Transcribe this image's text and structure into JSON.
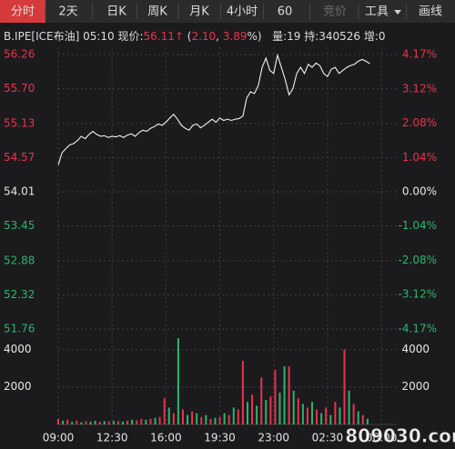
{
  "toolbar": {
    "tabs": [
      "分时",
      "2天",
      "日K",
      "周K",
      "月K",
      "4小时",
      "60",
      "竞价",
      "工具",
      "画线"
    ],
    "selected": 0,
    "disabled": [
      7
    ]
  },
  "info": [
    {
      "text": "B.IPE[ICE布油] 05:10 现价:",
      "color": "#dcdcdc"
    },
    {
      "text": "56.11",
      "color": "#e8334a"
    },
    {
      "text": "↑",
      "color": "#e8334a"
    },
    {
      "text": " (",
      "color": "#dcdcdc"
    },
    {
      "text": "2.10",
      "color": "#e8334a"
    },
    {
      "text": ", ",
      "color": "#dcdcdc"
    },
    {
      "text": "3.89",
      "color": "#e8334a"
    },
    {
      "text": "%)",
      "color": "#dcdcdc"
    },
    {
      "text": "   量:19 持:340526 增:0",
      "color": "#dcdcdc"
    }
  ],
  "chart_data": [
    {
      "type": "line",
      "x": [
        0,
        0.25,
        0.5,
        0.75,
        1,
        1.25,
        1.5,
        1.75,
        2,
        2.25,
        2.5,
        2.75,
        3,
        3.25,
        3.5,
        3.75,
        4,
        4.25,
        4.5,
        4.75,
        5,
        5.25,
        5.5,
        5.75,
        6,
        6.25,
        6.5,
        6.75,
        7,
        7.25,
        7.5,
        7.75,
        8,
        8.25,
        8.5,
        8.75,
        9,
        9.25,
        9.5,
        9.75,
        10,
        10.25,
        10.5,
        10.75,
        11,
        11.25,
        11.5,
        11.75,
        12,
        12.25,
        12.5,
        12.75,
        13,
        13.25,
        13.5,
        13.75,
        14,
        14.25,
        14.5,
        14.75,
        15,
        15.25,
        15.5,
        15.75,
        16,
        16.25,
        16.5,
        16.75,
        17,
        17.25,
        17.5,
        17.75,
        18,
        18.25,
        18.5,
        18.75,
        19,
        19.25,
        19.5,
        19.75,
        20,
        20.25
      ],
      "series": [
        {
          "color": "#f2f2f2",
          "values": [
            54.45,
            54.65,
            54.72,
            54.78,
            54.8,
            54.85,
            54.92,
            54.88,
            54.95,
            55.0,
            54.95,
            54.92,
            54.93,
            54.9,
            54.92,
            54.91,
            54.93,
            54.9,
            54.94,
            54.96,
            54.92,
            54.98,
            55.02,
            55.0,
            55.05,
            55.08,
            55.12,
            55.1,
            55.15,
            55.22,
            55.28,
            55.2,
            55.1,
            55.05,
            55.02,
            55.1,
            55.12,
            55.06,
            55.1,
            55.15,
            55.2,
            55.15,
            55.22,
            55.18,
            55.2,
            55.18,
            55.2,
            55.21,
            55.25,
            55.55,
            55.65,
            55.62,
            55.75,
            56.05,
            56.2,
            56.0,
            55.95,
            56.25,
            56.05,
            55.85,
            55.6,
            55.7,
            55.95,
            56.05,
            55.95,
            56.1,
            56.05,
            56.12,
            56.08,
            55.95,
            55.9,
            56.02,
            56.05,
            55.95,
            56.0,
            56.05,
            56.08,
            56.1,
            56.15,
            56.18,
            56.15,
            56.11
          ]
        }
      ],
      "xlim": [
        0,
        22
      ],
      "ylim": [
        51.76,
        56.26
      ],
      "yticks": [
        56.26,
        {
          "value": 55.7,
          "label": "55.70"
        },
        55.13,
        54.57,
        54.01,
        53.45,
        52.88,
        52.32,
        51.76
      ],
      "y2lim": [
        -4.17,
        4.17
      ],
      "y2ticks": [
        {
          "value": 4.17,
          "label": "4.17%"
        },
        {
          "value": 3.12,
          "label": "3.12%"
        },
        {
          "value": 2.08,
          "label": "2.08%"
        },
        {
          "value": 1.04,
          "label": "1.04%"
        },
        {
          "value": 0,
          "label": "0.00%"
        },
        {
          "value": -1.04,
          "label": "-1.04%"
        },
        {
          "value": -2.08,
          "label": "-2.08%"
        },
        {
          "value": -3.12,
          "label": "-3.12%"
        },
        {
          "value": -4.17,
          "label": "-4.17%"
        }
      ],
      "grid": true
    },
    {
      "type": "bar",
      "x": [
        0,
        0.3,
        0.6,
        0.9,
        1.2,
        1.5,
        1.8,
        2.1,
        2.4,
        2.7,
        3,
        3.3,
        3.6,
        3.9,
        4.2,
        4.5,
        4.8,
        5.1,
        5.4,
        5.7,
        6,
        6.3,
        6.6,
        6.9,
        7.2,
        7.5,
        7.8,
        8.1,
        8.4,
        8.7,
        9,
        9.3,
        9.6,
        9.9,
        10.2,
        10.5,
        10.8,
        11.1,
        11.4,
        11.7,
        12,
        12.3,
        12.6,
        12.9,
        13.2,
        13.5,
        13.8,
        14.1,
        14.4,
        14.7,
        15,
        15.3,
        15.6,
        15.9,
        16.2,
        16.5,
        16.8,
        17.1,
        17.4,
        17.7,
        18,
        18.3,
        18.6,
        18.9,
        19.2,
        19.5,
        19.8,
        20.1
      ],
      "values": [
        300,
        200,
        250,
        150,
        200,
        120,
        180,
        150,
        200,
        150,
        180,
        160,
        200,
        180,
        150,
        200,
        250,
        220,
        300,
        250,
        300,
        350,
        400,
        1400,
        900,
        600,
        4600,
        800,
        500,
        700,
        600,
        400,
        500,
        300,
        350,
        400,
        600,
        500,
        900,
        800,
        3400,
        1200,
        1600,
        1000,
        2500,
        1300,
        1500,
        2900,
        1700,
        3100,
        3100,
        1800,
        1400,
        1100,
        900,
        1200,
        800,
        600,
        900,
        500,
        1200,
        900,
        4000,
        1800,
        1100,
        700,
        500,
        300
      ],
      "colors": [
        "#e8334a",
        "#2fb36e",
        "#e8334a",
        "#2fb36e",
        "#e8334a",
        "#2fb36e",
        "#e8334a",
        "#2fb36e",
        "#2fb36e",
        "#e8334a",
        "#2fb36e",
        "#e8334a",
        "#2fb36e",
        "#e8334a",
        "#2fb36e",
        "#e8334a",
        "#2fb36e",
        "#e8334a",
        "#e8334a",
        "#2fb36e",
        "#e8334a",
        "#2fb36e",
        "#e8334a",
        "#e8334a",
        "#2fb36e",
        "#e8334a",
        "#2fb36e",
        "#e8334a",
        "#2fb36e",
        "#e8334a",
        "#2fb36e",
        "#e8334a",
        "#2fb36e",
        "#e8334a",
        "#2fb36e",
        "#e8334a",
        "#2fb36e",
        "#e8334a",
        "#2fb36e",
        "#e8334a",
        "#e8334a",
        "#2fb36e",
        "#e8334a",
        "#2fb36e",
        "#e8334a",
        "#2fb36e",
        "#e8334a",
        "#e8334a",
        "#2fb36e",
        "#2fb36e",
        "#e8334a",
        "#2fb36e",
        "#e8334a",
        "#2fb36e",
        "#e8334a",
        "#2fb36e",
        "#e8334a",
        "#2fb36e",
        "#e8334a",
        "#2fb36e",
        "#e8334a",
        "#2fb36e",
        "#e8334a",
        "#2fb36e",
        "#e8334a",
        "#2fb36e",
        "#e8334a",
        "#2fb36e"
      ],
      "xlim": [
        0,
        22
      ],
      "xticks": [
        {
          "value": 0,
          "label": "09:00"
        },
        {
          "value": 3.5,
          "label": "12:30"
        },
        {
          "value": 7,
          "label": "16:00"
        },
        {
          "value": 10.5,
          "label": "19:30"
        },
        {
          "value": 14,
          "label": "23:00"
        },
        {
          "value": 17.5,
          "label": "02:30"
        },
        {
          "value": 21,
          "label": "06:00"
        }
      ],
      "ylim": [
        0,
        4700
      ],
      "yticks": [
        4000,
        2000
      ],
      "y2lim": [
        0,
        4700
      ],
      "y2ticks": [
        4000,
        2000
      ],
      "grid": true
    }
  ],
  "watermark": "809030.com"
}
